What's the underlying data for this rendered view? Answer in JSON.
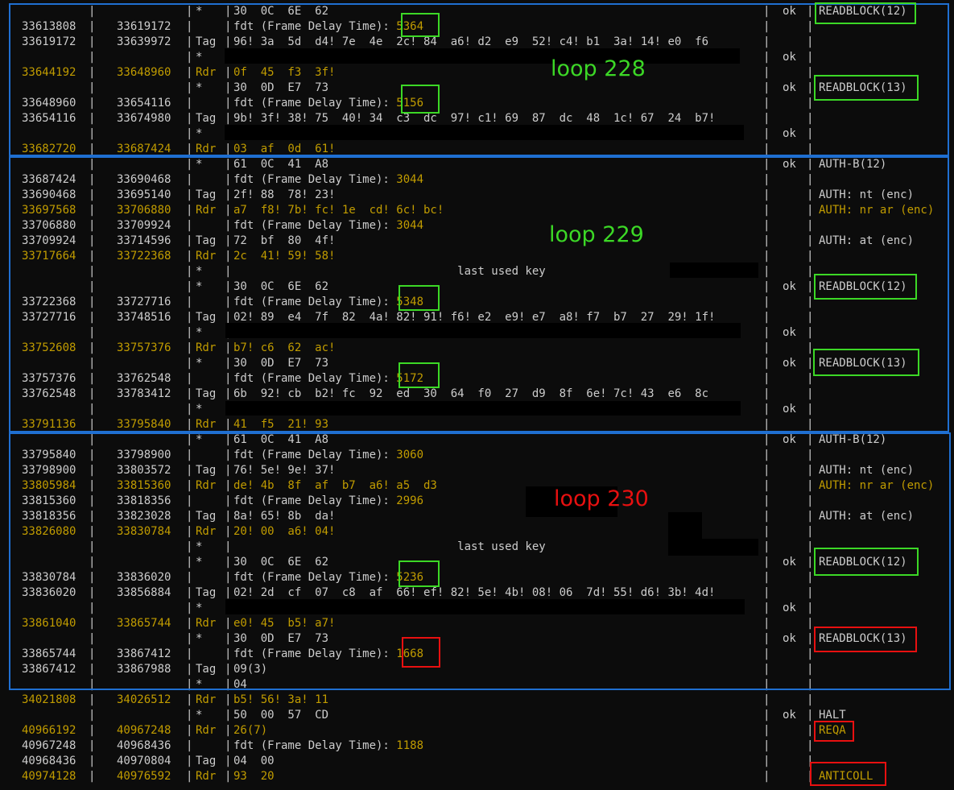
{
  "colors": {
    "background": "#0c0c0c",
    "text": "#cccccc",
    "reader": "#c19c00",
    "loop_box": "#1f6fd1",
    "green_box": "#3cd826",
    "red_box": "#e81010",
    "loop_green": "#3cd826",
    "loop_red": "#e81010"
  },
  "trace": [
    {
      "start": "",
      "end": "",
      "src": "*",
      "data": "30  0C  6E  62",
      "crc": "ok",
      "ann": "READBLOCK(12)",
      "rdr": false
    },
    {
      "start": "33613808",
      "end": "33619172",
      "src": "",
      "data": "fdt (Frame Delay Time): ",
      "fdt": "5364",
      "crc": "",
      "ann": "",
      "rdr": false
    },
    {
      "start": "33619172",
      "end": "33639972",
      "src": "Tag",
      "data": "96! 3a  5d  d4! 7e  4e  2c! 84  a6! d2  e9  52! c4! b1  3a! 14! e0  f6",
      "crc": "",
      "ann": "",
      "rdr": false
    },
    {
      "start": "",
      "end": "",
      "src": "*",
      "data": "",
      "crc": "ok",
      "ann": "",
      "rdr": false
    },
    {
      "start": "33644192",
      "end": "33648960",
      "src": "Rdr",
      "data": "0f  45  f3  3f!",
      "crc": "",
      "ann": "",
      "rdr": true
    },
    {
      "start": "",
      "end": "",
      "src": "*",
      "data": "30  0D  E7  73",
      "crc": "ok",
      "ann": "READBLOCK(13)",
      "rdr": false
    },
    {
      "start": "33648960",
      "end": "33654116",
      "src": "",
      "data": "fdt (Frame Delay Time): ",
      "fdt": "5156",
      "crc": "",
      "ann": "",
      "rdr": false
    },
    {
      "start": "33654116",
      "end": "33674980",
      "src": "Tag",
      "data": "9b! 3f! 38! 75  40! 34  c3  dc  97! c1! 69  87  dc  48  1c! 67  24  b7!",
      "crc": "",
      "ann": "",
      "rdr": false
    },
    {
      "start": "",
      "end": "",
      "src": "*",
      "data": "",
      "crc": "ok",
      "ann": "",
      "rdr": false
    },
    {
      "start": "33682720",
      "end": "33687424",
      "src": "Rdr",
      "data": "03  af  0d  61!",
      "crc": "",
      "ann": "",
      "rdr": true
    },
    {
      "start": "",
      "end": "",
      "src": "*",
      "data": "61  0C  41  A8",
      "crc": "ok",
      "ann": "AUTH-B(12)",
      "rdr": false
    },
    {
      "start": "33687424",
      "end": "33690468",
      "src": "",
      "data": "fdt (Frame Delay Time): ",
      "fdt": "3044",
      "crc": "",
      "ann": "",
      "rdr": false
    },
    {
      "start": "33690468",
      "end": "33695140",
      "src": "Tag",
      "data": "2f! 88  78! 23!",
      "crc": "",
      "ann": "AUTH: nt (enc)",
      "rdr": false
    },
    {
      "start": "33697568",
      "end": "33706880",
      "src": "Rdr",
      "data": "a7  f8! 7b! fc! 1e  cd! 6c! bc!",
      "crc": "",
      "ann": "AUTH: nr ar (enc)",
      "rdr": true
    },
    {
      "start": "33706880",
      "end": "33709924",
      "src": "",
      "data": "fdt (Frame Delay Time): ",
      "fdt": "3044",
      "crc": "",
      "ann": "",
      "rdr": false
    },
    {
      "start": "33709924",
      "end": "33714596",
      "src": "Tag",
      "data": "72  bf  80  4f!",
      "crc": "",
      "ann": "AUTH: at (enc)",
      "rdr": false
    },
    {
      "start": "33717664",
      "end": "33722368",
      "src": "Rdr",
      "data": "2c  41! 59! 58!",
      "crc": "",
      "ann": "",
      "rdr": true
    },
    {
      "start": "",
      "end": "",
      "src": "*",
      "data": "                                 last used key",
      "crc": "",
      "ann": "",
      "rdr": false
    },
    {
      "start": "",
      "end": "",
      "src": "*",
      "data": "30  0C  6E  62",
      "crc": "ok",
      "ann": "READBLOCK(12)",
      "rdr": false
    },
    {
      "start": "33722368",
      "end": "33727716",
      "src": "",
      "data": "fdt (Frame Delay Time): ",
      "fdt": "5348",
      "crc": "",
      "ann": "",
      "rdr": false
    },
    {
      "start": "33727716",
      "end": "33748516",
      "src": "Tag",
      "data": "02! 89  e4  7f  82  4a! 82! 91! f6! e2  e9! e7  a8! f7  b7  27  29! 1f!",
      "crc": "",
      "ann": "",
      "rdr": false
    },
    {
      "start": "",
      "end": "",
      "src": "*",
      "data": "",
      "crc": "ok",
      "ann": "",
      "rdr": false
    },
    {
      "start": "33752608",
      "end": "33757376",
      "src": "Rdr",
      "data": "b7! c6  62  ac!",
      "crc": "",
      "ann": "",
      "rdr": true
    },
    {
      "start": "",
      "end": "",
      "src": "*",
      "data": "30  0D  E7  73",
      "crc": "ok",
      "ann": "READBLOCK(13)",
      "rdr": false
    },
    {
      "start": "33757376",
      "end": "33762548",
      "src": "",
      "data": "fdt (Frame Delay Time): ",
      "fdt": "5172",
      "crc": "",
      "ann": "",
      "rdr": false
    },
    {
      "start": "33762548",
      "end": "33783412",
      "src": "Tag",
      "data": "6b  92! cb  b2! fc  92  ed  30  64  f0  27  d9  8f  6e! 7c! 43  e6  8c",
      "crc": "",
      "ann": "",
      "rdr": false
    },
    {
      "start": "",
      "end": "",
      "src": "*",
      "data": "",
      "crc": "ok",
      "ann": "",
      "rdr": false
    },
    {
      "start": "33791136",
      "end": "33795840",
      "src": "Rdr",
      "data": "41  f5  21! 93",
      "crc": "",
      "ann": "",
      "rdr": true
    },
    {
      "start": "",
      "end": "",
      "src": "*",
      "data": "61  0C  41  A8",
      "crc": "ok",
      "ann": "AUTH-B(12)",
      "rdr": false
    },
    {
      "start": "33795840",
      "end": "33798900",
      "src": "",
      "data": "fdt (Frame Delay Time): ",
      "fdt": "3060",
      "crc": "",
      "ann": "",
      "rdr": false
    },
    {
      "start": "33798900",
      "end": "33803572",
      "src": "Tag",
      "data": "76! 5e! 9e! 37!",
      "crc": "",
      "ann": "AUTH: nt (enc)",
      "rdr": false
    },
    {
      "start": "33805984",
      "end": "33815360",
      "src": "Rdr",
      "data": "de! 4b  8f  af  b7  a6! a5  d3",
      "crc": "",
      "ann": "AUTH: nr ar (enc)",
      "rdr": true
    },
    {
      "start": "33815360",
      "end": "33818356",
      "src": "",
      "data": "fdt (Frame Delay Time): ",
      "fdt": "2996",
      "crc": "",
      "ann": "",
      "rdr": false
    },
    {
      "start": "33818356",
      "end": "33823028",
      "src": "Tag",
      "data": "8a! 65! 8b  da!",
      "crc": "",
      "ann": "AUTH: at (enc)",
      "rdr": false
    },
    {
      "start": "33826080",
      "end": "33830784",
      "src": "Rdr",
      "data": "20! 00  a6! 04!",
      "crc": "",
      "ann": "",
      "rdr": true
    },
    {
      "start": "",
      "end": "",
      "src": "*",
      "data": "                                 last used key",
      "crc": "",
      "ann": "",
      "rdr": false
    },
    {
      "start": "",
      "end": "",
      "src": "*",
      "data": "30  0C  6E  62",
      "crc": "ok",
      "ann": "READBLOCK(12)",
      "rdr": false
    },
    {
      "start": "33830784",
      "end": "33836020",
      "src": "",
      "data": "fdt (Frame Delay Time): ",
      "fdt": "5236",
      "crc": "",
      "ann": "",
      "rdr": false
    },
    {
      "start": "33836020",
      "end": "33856884",
      "src": "Tag",
      "data": "02! 2d  cf  07  c8  af  66! ef! 82! 5e! 4b! 08! 06  7d! 55! d6! 3b! 4d!",
      "crc": "",
      "ann": "",
      "rdr": false
    },
    {
      "start": "",
      "end": "",
      "src": "*",
      "data": "",
      "crc": "ok",
      "ann": "",
      "rdr": false
    },
    {
      "start": "33861040",
      "end": "33865744",
      "src": "Rdr",
      "data": "e0! 45  b5! a7!",
      "crc": "",
      "ann": "",
      "rdr": true
    },
    {
      "start": "",
      "end": "",
      "src": "*",
      "data": "30  0D  E7  73",
      "crc": "ok",
      "ann": "READBLOCK(13)",
      "rdr": false
    },
    {
      "start": "33865744",
      "end": "33867412",
      "src": "",
      "data": "fdt (Frame Delay Time): ",
      "fdt": "1668",
      "crc": "",
      "ann": "",
      "rdr": false
    },
    {
      "start": "33867412",
      "end": "33867988",
      "src": "Tag",
      "data": "09(3)",
      "crc": "",
      "ann": "",
      "rdr": false
    },
    {
      "start": "",
      "end": "",
      "src": "*",
      "data": "04",
      "crc": "",
      "ann": "",
      "rdr": false
    },
    {
      "start": "34021808",
      "end": "34026512",
      "src": "Rdr",
      "data": "b5! 56! 3a! 11",
      "crc": "",
      "ann": "",
      "rdr": true
    },
    {
      "start": "",
      "end": "",
      "src": "*",
      "data": "50  00  57  CD",
      "crc": "ok",
      "ann": "HALT",
      "rdr": false
    },
    {
      "start": "40966192",
      "end": "40967248",
      "src": "Rdr",
      "data": "26(7)",
      "crc": "",
      "ann": "REQA",
      "rdr": true
    },
    {
      "start": "40967248",
      "end": "40968436",
      "src": "",
      "data": "fdt (Frame Delay Time): ",
      "fdt": "1188",
      "crc": "",
      "ann": "",
      "rdr": false
    },
    {
      "start": "40968436",
      "end": "40970804",
      "src": "Tag",
      "data": "04  00",
      "crc": "",
      "ann": "",
      "rdr": false
    },
    {
      "start": "40974128",
      "end": "40976592",
      "src": "Rdr",
      "data": "93  20",
      "crc": "",
      "ann": "ANTICOLL",
      "rdr": true
    }
  ],
  "loops": [
    {
      "label": "loop 228",
      "color": "green"
    },
    {
      "label": "loop 229",
      "color": "green"
    },
    {
      "label": "loop 230",
      "color": "red"
    }
  ]
}
